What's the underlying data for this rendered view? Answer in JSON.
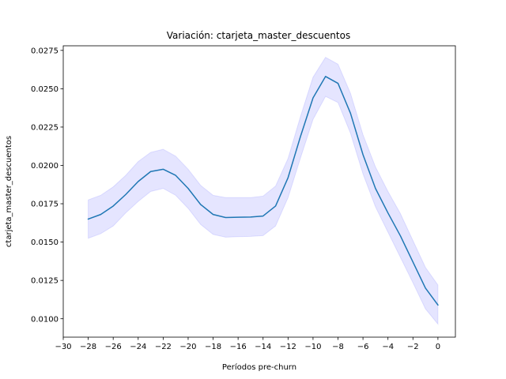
{
  "chart_data": {
    "type": "line",
    "title": "Variación: ctarjeta_master_descuentos",
    "xlabel": "Períodos pre-churn",
    "ylabel": "ctarjeta_master_descuentos",
    "xlim": [
      -30,
      1.4
    ],
    "ylim": [
      0.0088,
      0.0278
    ],
    "xticks": [
      -30,
      -28,
      -26,
      -24,
      -22,
      -20,
      -18,
      -16,
      -14,
      -12,
      -10,
      -8,
      -6,
      -4,
      -2,
      0
    ],
    "xtick_labels": [
      "−30",
      "−28",
      "−26",
      "−24",
      "−22",
      "−20",
      "−18",
      "−16",
      "−14",
      "−12",
      "−10",
      "−8",
      "−6",
      "−4",
      "−2",
      "0"
    ],
    "yticks": [
      0.01,
      0.0125,
      0.015,
      0.0175,
      0.02,
      0.0225,
      0.025,
      0.0275
    ],
    "ytick_labels": [
      "0.0100",
      "0.0125",
      "0.0150",
      "0.0175",
      "0.0200",
      "0.0225",
      "0.0250",
      "0.0275"
    ],
    "grid": false,
    "legend": "none",
    "colors": {
      "line": "#1f77b4",
      "band": "#0000ff"
    },
    "series": [
      {
        "x": [
          -28,
          -27,
          -26,
          -25,
          -24,
          -23,
          -22,
          -21,
          -20,
          -19,
          -18,
          -17,
          -16,
          -15,
          -14,
          -13,
          -12,
          -11,
          -10,
          -9,
          -8,
          -7,
          -6,
          -5,
          -4,
          -3,
          -2,
          -1,
          0
        ],
        "values": [
          0.0165,
          0.0168,
          0.01735,
          0.0181,
          0.01895,
          0.0196,
          0.01975,
          0.01935,
          0.0185,
          0.01745,
          0.0168,
          0.0166,
          0.01662,
          0.01663,
          0.0167,
          0.01735,
          0.0192,
          0.0219,
          0.0244,
          0.0258,
          0.02535,
          0.0234,
          0.0207,
          0.0185,
          0.0169,
          0.0154,
          0.0137,
          0.012,
          0.0109
        ],
        "lower": [
          0.01525,
          0.01555,
          0.01605,
          0.0169,
          0.01765,
          0.0183,
          0.0185,
          0.01805,
          0.0172,
          0.01615,
          0.0155,
          0.01532,
          0.01535,
          0.01537,
          0.01542,
          0.01605,
          0.0179,
          0.0205,
          0.023,
          0.0245,
          0.0241,
          0.0221,
          0.01945,
          0.0173,
          0.01565,
          0.014,
          0.01235,
          0.01065,
          0.00965
        ],
        "upper": [
          0.01775,
          0.01805,
          0.0186,
          0.01935,
          0.02025,
          0.02085,
          0.02105,
          0.0206,
          0.01975,
          0.0187,
          0.01805,
          0.0179,
          0.0179,
          0.0179,
          0.018,
          0.01865,
          0.02045,
          0.0232,
          0.02575,
          0.02705,
          0.0266,
          0.0247,
          0.022,
          0.0199,
          0.0183,
          0.01685,
          0.0151,
          0.01335,
          0.0122
        ]
      }
    ]
  }
}
